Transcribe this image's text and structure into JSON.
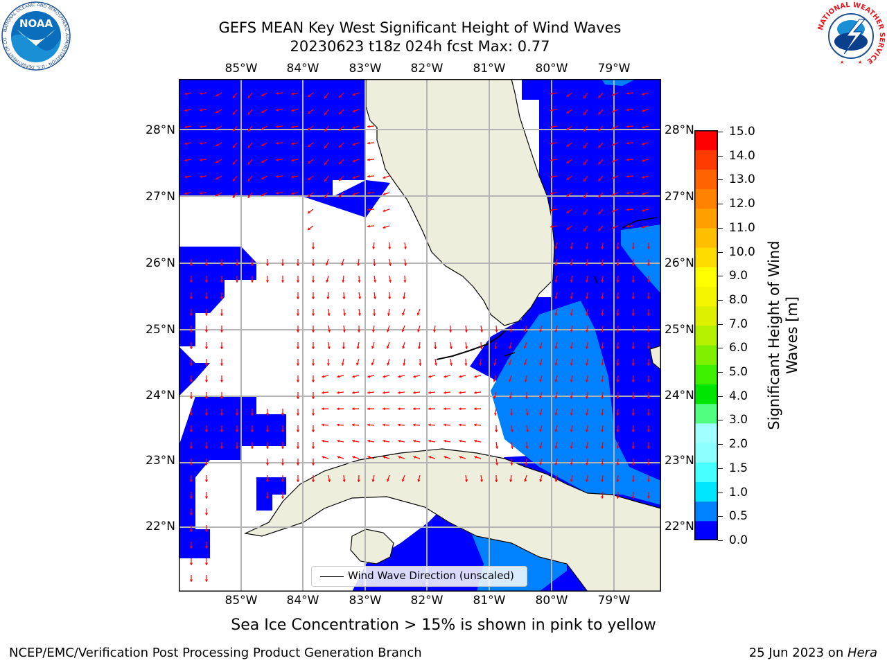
{
  "title": {
    "line1": "GEFS MEAN Key West Significant Height of Wind Waves",
    "line2": "20230623 t18z 024h fcst   Max: 0.77"
  },
  "map": {
    "lon_labels": [
      "85°W",
      "84°W",
      "83°W",
      "82°W",
      "81°W",
      "80°W",
      "79°W"
    ],
    "lat_labels": [
      "28°N",
      "27°N",
      "26°N",
      "25°N",
      "24°N",
      "23°N",
      "22°N"
    ],
    "legend": {
      "label": "Wind Wave Direction (unscaled)"
    },
    "colors": {
      "level_0": "#0000ff",
      "level_1": "#0082ff",
      "land": "#eeeedd",
      "arrow": "#ff0000",
      "grid": "#b4b4b4"
    }
  },
  "colorbar": {
    "label_line1": "Significant Height of Wind",
    "label_line2": "Waves [m]",
    "ticks": [
      "15.0",
      "14.0",
      "13.0",
      "12.0",
      "11.0",
      "10.0",
      "9.0",
      "8.0",
      "7.0",
      "6.0",
      "5.0",
      "4.0",
      "3.0",
      "2.0",
      "1.5",
      "1.0",
      "0.5",
      "0.0"
    ],
    "colors": [
      "#0000ff",
      "#0082ff",
      "#00e6ff",
      "#46ffff",
      "#8cffff",
      "#a0ffff",
      "#50ff80",
      "#00e600",
      "#3cf000",
      "#80f000",
      "#b4f000",
      "#dcf000",
      "#f5f500",
      "#ffff00",
      "#ffdc00",
      "#ffbe00",
      "#ffa000",
      "#ff8200",
      "#ff6400",
      "#ff3c00",
      "#ff0000"
    ]
  },
  "note": "Sea Ice Concentration > 15% is shown in pink to yellow",
  "footer": {
    "left": "NCEP/EMC/Verification Post Processing Product Generation Branch",
    "right_prefix": "25 Jun 2023 on ",
    "right_host": "Hera"
  },
  "logos": {
    "noaa": {
      "text": "NOAA",
      "ring": "NATIONAL OCEANIC AND ATMOSPHERIC ADMINISTRATION · U.S. DEPARTMENT OF COMMERCE"
    },
    "nws": {
      "ring": "NATIONAL WEATHER SERVICE"
    }
  }
}
